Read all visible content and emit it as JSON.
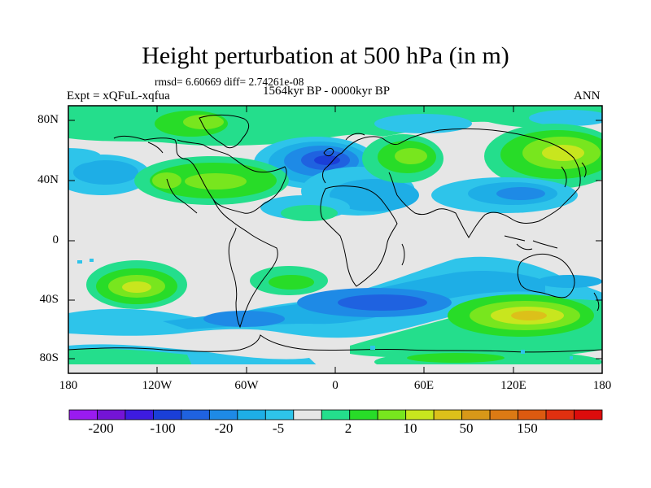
{
  "title": "Height perturbation at 500 hPa (in m)",
  "stats": "rmsd= 6.60669 diff= 2.74261e-08",
  "experiment": "Expt = xQFuL-xqfua",
  "period": "1564kyr BP - 0000kyr BP",
  "season": "ANN",
  "axes": {
    "lat_ticks": [
      "80N",
      "40N",
      "0",
      "40S",
      "80S"
    ],
    "lon_ticks": [
      "180",
      "120W",
      "60W",
      "0",
      "60E",
      "120E",
      "180"
    ]
  },
  "colorbar": {
    "labels": [
      "-200",
      "-100",
      "-20",
      "-5",
      "2",
      "10",
      "50",
      "150"
    ],
    "colors": [
      "#9a1bf0",
      "#7414d6",
      "#3d1be0",
      "#1a3fd8",
      "#1f62e0",
      "#1e8ae6",
      "#1eaee6",
      "#2ec4ea",
      "#e6e6e6",
      "#24de8c",
      "#28dc28",
      "#78e61e",
      "#c8e61e",
      "#dcc01a",
      "#d89818",
      "#dc7a14",
      "#dc5a10",
      "#e03010",
      "#dc0c0c"
    ]
  },
  "colors": {
    "neutral": "#e6e6e6",
    "coast": "#000000"
  }
}
